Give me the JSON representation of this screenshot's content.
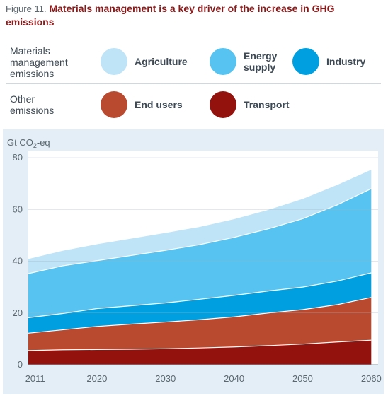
{
  "figure": {
    "label": "Figure 11.",
    "title": "Materials management is a key driver of the increase in GHG emissions"
  },
  "legend": {
    "group1": {
      "label": "Materials management emissions"
    },
    "group2": {
      "label": "Other emissions"
    },
    "items": [
      {
        "name": "Agriculture",
        "color": "#bfe3f7"
      },
      {
        "name": "Energy supply",
        "color": "#56c3f0"
      },
      {
        "name": "Industry",
        "color": "#00a0e0"
      },
      {
        "name": "End users",
        "color": "#b9492f"
      },
      {
        "name": "Transport",
        "color": "#93120d"
      }
    ]
  },
  "chart_data": {
    "type": "area",
    "stacked": true,
    "ylabel": "Gt CO2-eq",
    "ylim": [
      0,
      80
    ],
    "yticks": [
      0,
      20,
      40,
      60,
      80
    ],
    "xlim": [
      2010,
      2061
    ],
    "xticks": [
      2011,
      2020,
      2030,
      2040,
      2050,
      2060
    ],
    "grid": true,
    "x": [
      2010,
      2015,
      2020,
      2025,
      2030,
      2035,
      2040,
      2045,
      2050,
      2055,
      2060
    ],
    "series": [
      {
        "name": "Transport",
        "color": "#93120d",
        "values": [
          5.5,
          5.8,
          5.9,
          6.0,
          6.2,
          6.5,
          6.9,
          7.4,
          8.0,
          8.8,
          9.5
        ]
      },
      {
        "name": "End users",
        "color": "#b9492f",
        "values": [
          6.7,
          7.7,
          8.9,
          9.7,
          10.3,
          10.9,
          11.6,
          12.6,
          13.3,
          14.4,
          16.5
        ]
      },
      {
        "name": "Industry",
        "color": "#00a0e0",
        "values": [
          6.0,
          6.3,
          6.9,
          7.1,
          7.4,
          7.9,
          8.3,
          8.5,
          8.7,
          9.1,
          9.5
        ]
      },
      {
        "name": "Energy supply",
        "color": "#56c3f0",
        "values": [
          17.0,
          18.4,
          18.5,
          19.4,
          20.3,
          21.1,
          22.4,
          24.0,
          26.4,
          29.4,
          32.5
        ]
      },
      {
        "name": "Agriculture",
        "color": "#bfe3f7",
        "values": [
          5.8,
          6.0,
          6.5,
          6.7,
          6.9,
          7.0,
          7.2,
          7.5,
          7.8,
          7.9,
          7.5
        ]
      }
    ]
  }
}
